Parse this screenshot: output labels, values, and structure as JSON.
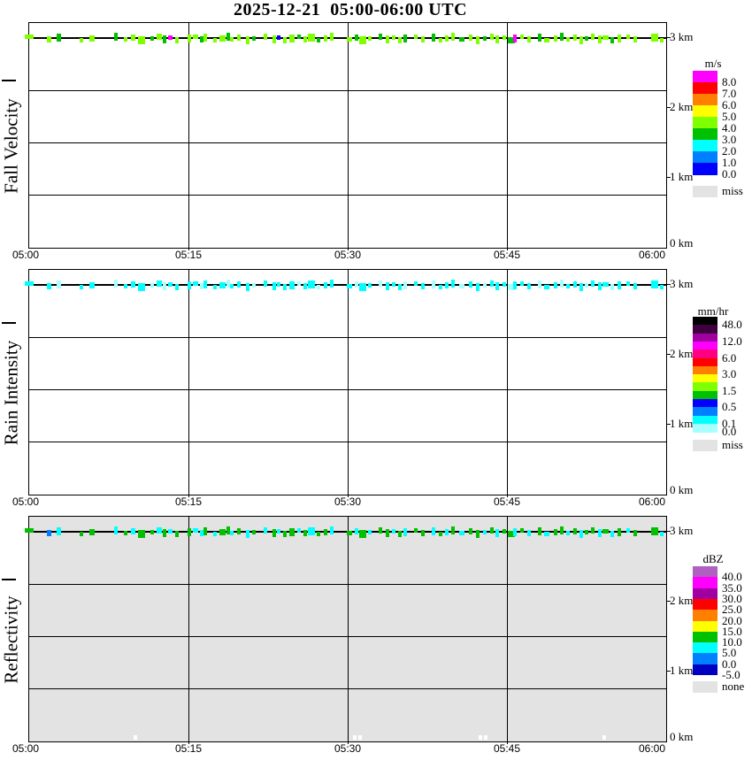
{
  "chart_data": {
    "type": "heatmap",
    "title": "2025-12-21  05:00-06:00 UTC",
    "time_axis": {
      "start": "05:00",
      "end": "06:00",
      "ticks": [
        "05:00",
        "05:15",
        "05:30",
        "05:45",
        "06:00"
      ]
    },
    "height_axis": {
      "unit": "km",
      "labels": [
        "3 km",
        "2 km",
        "1 km",
        "0 km"
      ],
      "km_values": [
        3,
        2,
        1,
        0
      ]
    },
    "echo_top_km": 3.0,
    "grid": "on",
    "palette": {
      "C": "#80FF00",
      "G": "#00C000",
      "M": "#FF00FF",
      "B": "#0000FF",
      "Y": "#00FFFF",
      "P": "#A8FFFF",
      "L": "#0080FF",
      "W": "#FFFFFF"
    },
    "event_minutes": [
      0.0,
      1.9,
      2.75,
      4.9,
      5.9,
      8.2,
      9.1,
      9.75,
      10.6,
      11.6,
      12.25,
      12.75,
      13.3,
      13.9,
      15.1,
      15.7,
      16.25,
      16.6,
      17.5,
      18.2,
      18.75,
      19.1,
      19.75,
      20.6,
      21.2,
      22.25,
      23.1,
      23.5,
      24.1,
      24.75,
      25.4,
      26.0,
      26.6,
      27.25,
      27.9,
      28.5,
      30.2,
      30.8,
      31.4,
      32.1,
      33.1,
      33.75,
      34.3,
      34.9,
      35.4,
      36.4,
      37.1,
      38.1,
      38.75,
      39.3,
      39.9,
      40.75,
      41.6,
      42.25,
      42.9,
      43.6,
      44.1,
      44.75,
      45.4,
      45.75,
      46.4,
      47.1,
      48.1,
      48.75,
      49.6,
      50.2,
      50.75,
      51.4,
      52.0,
      52.5,
      53.1,
      53.75,
      54.3,
      54.9,
      55.6,
      56.4,
      57.1,
      58.9,
      59.6
    ],
    "event_widths": [
      10,
      5,
      5,
      4,
      6,
      4,
      4,
      5,
      8,
      4,
      6,
      4,
      5,
      4,
      4,
      6,
      4,
      4,
      4,
      7,
      4,
      4,
      4,
      4,
      4,
      4,
      4,
      4,
      4,
      6,
      4,
      4,
      8,
      4,
      4,
      4,
      6,
      4,
      8,
      4,
      4,
      4,
      4,
      4,
      4,
      4,
      4,
      4,
      4,
      4,
      4,
      6,
      4,
      4,
      4,
      4,
      4,
      4,
      8,
      4,
      4,
      4,
      4,
      6,
      4,
      4,
      4,
      4,
      4,
      4,
      4,
      4,
      7,
      4,
      4,
      4,
      4,
      8,
      4
    ],
    "panels": [
      {
        "name": "Fall Velocity",
        "unit": "m/s",
        "background": "#FFFFFF",
        "mark_colors": "CCGCCGCCCGCGMCCCGCCCGCCCGCCBCCGCCGCCCGCCGCCCGCCGCCCGCCGCCCGMCCGCCGCCCGCCCGCCCCC",
        "colorbar": {
          "title": "m/s",
          "band_colors": [
            "#FF00FF",
            "#FF0000",
            "#FF8000",
            "#FFFF00",
            "#80FF00",
            "#00C000",
            "#00FFFF",
            "#0080FF",
            "#0000FF"
          ],
          "labels": [
            {
              "text": "8.0",
              "pos": 1
            },
            {
              "text": "7.0",
              "pos": 2
            },
            {
              "text": "6.0",
              "pos": 3
            },
            {
              "text": "5.0",
              "pos": 4
            },
            {
              "text": "4.0",
              "pos": 5
            },
            {
              "text": "3.0",
              "pos": 6
            },
            {
              "text": "2.0",
              "pos": 7
            },
            {
              "text": "1.0",
              "pos": 8
            },
            {
              "text": "0.0",
              "pos": 9
            }
          ],
          "missing": {
            "color": "#E3E3E3",
            "label": "miss"
          }
        }
      },
      {
        "name": "Rain Intensity",
        "unit": "mm/hr",
        "background": "#FFFFFF",
        "mark_colors": "YYPYYPYYYPYPYYYYPYYYPYYYPYYYYYPYYPYYYPYYPYYYPYYPYYYPYYPYYYPYYYPYYPYYYPYYYPYYYYY",
        "colorbar": {
          "title": "mm/hr",
          "band_colors": [
            "#000000",
            "#400040",
            "#A000A0",
            "#FF00FF",
            "#FF0080",
            "#FF0000",
            "#FF8000",
            "#FFFF00",
            "#80FF00",
            "#00C000",
            "#0000FF",
            "#0080FF",
            "#00FFFF",
            "#A8FFFF"
          ],
          "labels": [
            {
              "text": "48.0",
              "pos": 1
            },
            {
              "text": "12.0",
              "pos": 3
            },
            {
              "text": "6.0",
              "pos": 5
            },
            {
              "text": "3.0",
              "pos": 7
            },
            {
              "text": "1.5",
              "pos": 9
            },
            {
              "text": "0.5",
              "pos": 11
            },
            {
              "text": "0.1",
              "pos": 13
            },
            {
              "text": "0.0",
              "pos": 14
            }
          ],
          "missing": {
            "color": "#E3E3E3",
            "label": "miss"
          }
        }
      },
      {
        "name": "Reflectivity",
        "unit": "dBZ",
        "background": "#E3E3E3",
        "mark_colors": "GLYGGYGYGGYGYGGYYGYGGYGYGYGYGGYGYGGYGYGYGGYGYGGYGYGYGGYGYGGYGYGYGGYGYGGYGYGYGGY",
        "surface_marks": {
          "color": "#FFFFFF",
          "minutes": [
            10.0,
            30.7,
            31.2,
            42.5,
            43.0,
            54.2
          ]
        },
        "colorbar": {
          "title": "dBZ",
          "band_colors": [
            "#B060C0",
            "#FF00FF",
            "#A000A0",
            "#FF0000",
            "#FF8000",
            "#FFFF00",
            "#00C000",
            "#00FFFF",
            "#0080FF",
            "#0000C0"
          ],
          "labels": [
            {
              "text": "40.0",
              "pos": 1
            },
            {
              "text": "35.0",
              "pos": 2
            },
            {
              "text": "30.0",
              "pos": 3
            },
            {
              "text": "25.0",
              "pos": 4
            },
            {
              "text": "20.0",
              "pos": 5
            },
            {
              "text": "15.0",
              "pos": 6
            },
            {
              "text": "10.0",
              "pos": 7
            },
            {
              "text": "5.0",
              "pos": 8
            },
            {
              "text": "0.0",
              "pos": 9
            },
            {
              "text": "-5.0",
              "pos": 10
            }
          ],
          "missing": {
            "color": "#E3E3E3",
            "label": "none"
          }
        }
      }
    ]
  }
}
